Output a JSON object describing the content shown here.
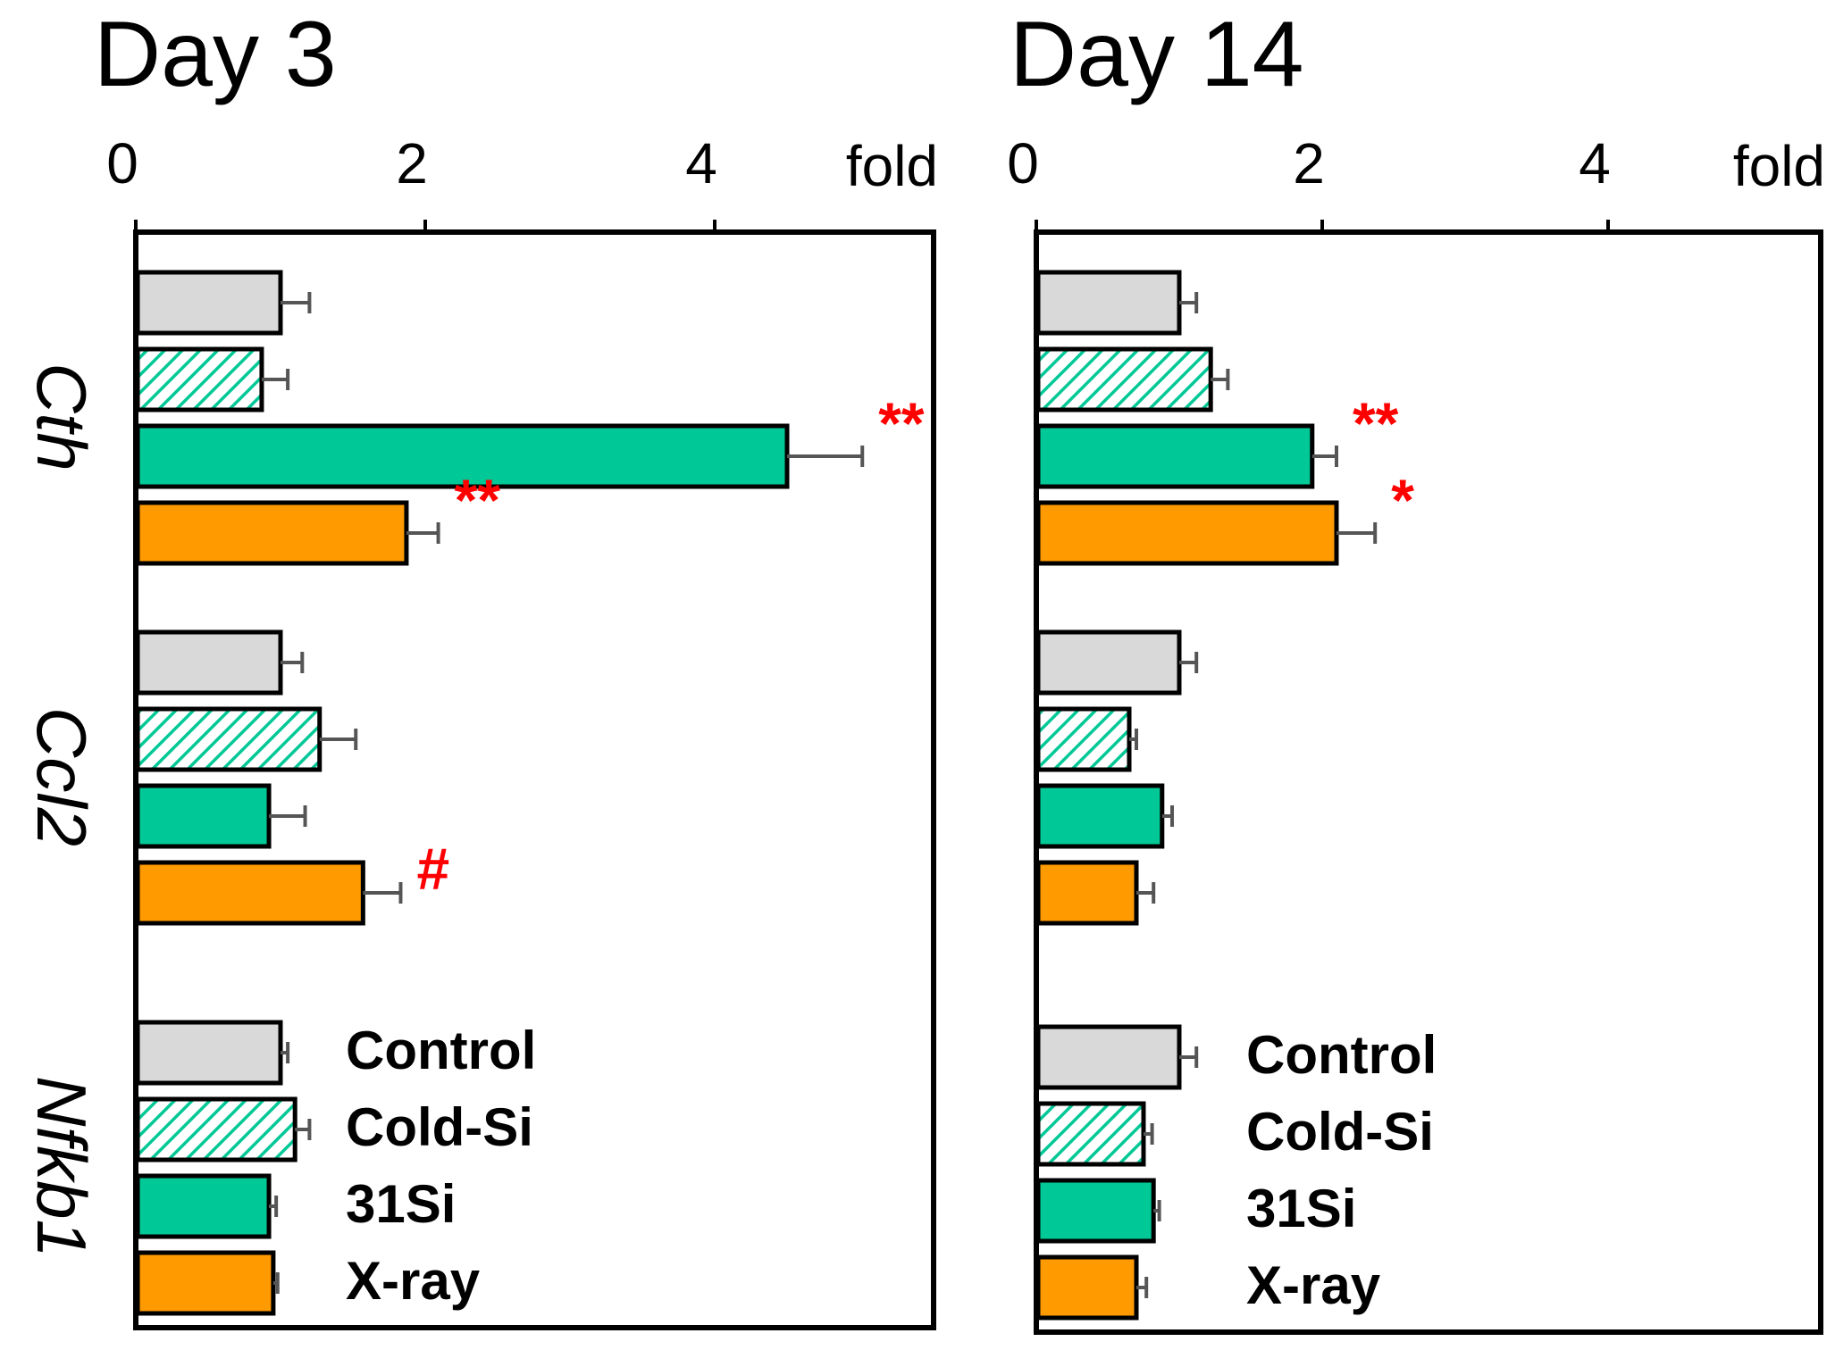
{
  "chart_data": [
    {
      "type": "bar",
      "orientation": "horizontal",
      "title": "Day 3",
      "xlabel": "fold",
      "xlim": [
        0,
        5.5
      ],
      "xticks": [
        "0",
        "2",
        "4"
      ],
      "categories": [
        "Cth",
        "Ccl2",
        "Nfkb1"
      ],
      "series": [
        {
          "name": "Control",
          "values": [
            1.0,
            1.0,
            1.0
          ],
          "errors": [
            0.2,
            0.15,
            0.05
          ]
        },
        {
          "name": "Cold-Si",
          "values": [
            0.87,
            1.27,
            1.1
          ],
          "errors": [
            0.18,
            0.25,
            0.1
          ]
        },
        {
          "name": "31Si",
          "values": [
            4.5,
            0.92,
            0.92
          ],
          "errors": [
            0.52,
            0.25,
            0.05
          ]
        },
        {
          "name": "X-ray",
          "values": [
            1.87,
            1.57,
            0.95
          ],
          "errors": [
            0.22,
            0.26,
            0.03
          ]
        }
      ],
      "annotations": [
        {
          "category": "Cth",
          "series": "31Si",
          "text": "**"
        },
        {
          "category": "Cth",
          "series": "X-ray",
          "text": "**"
        },
        {
          "category": "Ccl2",
          "series": "X-ray",
          "text": "#"
        }
      ],
      "legend_position": "bottom-right",
      "grid": false
    },
    {
      "type": "bar",
      "orientation": "horizontal",
      "title": "Day 14",
      "xlabel": "fold",
      "xlim": [
        0,
        5.5
      ],
      "xticks": [
        "0",
        "2",
        "4"
      ],
      "categories": [
        "Cth",
        "Ccl2",
        "Nfkb1"
      ],
      "series": [
        {
          "name": "Control",
          "values": [
            1.0,
            1.0,
            1.0
          ],
          "errors": [
            0.12,
            0.12,
            0.12
          ]
        },
        {
          "name": "Cold-Si",
          "values": [
            1.22,
            0.65,
            0.75
          ],
          "errors": [
            0.12,
            0.05,
            0.06
          ]
        },
        {
          "name": "31Si",
          "values": [
            1.93,
            0.88,
            0.82
          ],
          "errors": [
            0.17,
            0.07,
            0.04
          ]
        },
        {
          "name": "X-ray",
          "values": [
            2.1,
            0.7,
            0.7
          ],
          "errors": [
            0.27,
            0.12,
            0.07
          ]
        }
      ],
      "annotations": [
        {
          "category": "Cth",
          "series": "31Si",
          "text": "**"
        },
        {
          "category": "Cth",
          "series": "X-ray",
          "text": "*"
        }
      ],
      "legend_position": "bottom-right",
      "grid": false
    }
  ],
  "series_colors": {
    "Control": "#d9d9d9",
    "Cold-Si": "#00c896",
    "31Si": "#00c896",
    "X-ray": "#ff9a00"
  },
  "annotation_color": "#ff0000",
  "error_bar_color": "#555555"
}
